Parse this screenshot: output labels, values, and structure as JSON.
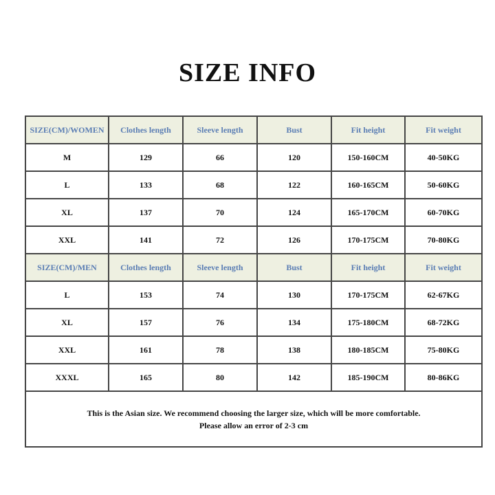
{
  "title": "SIZE INFO",
  "colors": {
    "header_bg": "#eef0e1",
    "header_text": "#5a7db4",
    "border": "#444444"
  },
  "columns": [
    "Clothes length",
    "Sleeve length",
    "Bust",
    "Fit height",
    "Fit weight"
  ],
  "women": {
    "header": "SIZE(CM)/WOMEN",
    "rows": [
      [
        "M",
        "129",
        "66",
        "120",
        "150-160CM",
        "40-50KG"
      ],
      [
        "L",
        "133",
        "68",
        "122",
        "160-165CM",
        "50-60KG"
      ],
      [
        "XL",
        "137",
        "70",
        "124",
        "165-170CM",
        "60-70KG"
      ],
      [
        "XXL",
        "141",
        "72",
        "126",
        "170-175CM",
        "70-80KG"
      ]
    ]
  },
  "men": {
    "header": "SIZE(CM)/MEN",
    "rows": [
      [
        "L",
        "153",
        "74",
        "130",
        "170-175CM",
        "62-67KG"
      ],
      [
        "XL",
        "157",
        "76",
        "134",
        "175-180CM",
        "68-72KG"
      ],
      [
        "XXL",
        "161",
        "78",
        "138",
        "180-185CM",
        "75-80KG"
      ],
      [
        "XXXL",
        "165",
        "80",
        "142",
        "185-190CM",
        "80-86KG"
      ]
    ]
  },
  "note": {
    "line1": "This is the Asian size. We recommend choosing the larger size, which will be more comfortable.",
    "line2": "Please allow an error of 2-3 cm"
  }
}
